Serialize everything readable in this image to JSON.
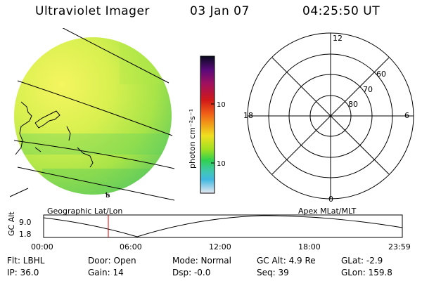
{
  "header": {
    "title": "Ultraviolet Imager",
    "date": "03 Jan 07",
    "time": "04:25:50 UT"
  },
  "colorbar": {
    "label": "photon cm⁻²s⁻¹",
    "ticks": [
      "100",
      "10"
    ],
    "colors": [
      "#1a0a3a",
      "#5a0a7a",
      "#a01060",
      "#d01818",
      "#f06018",
      "#f0a018",
      "#f0e020",
      "#a0e020",
      "#30d050",
      "#40c8b0",
      "#40b8e0",
      "#e8e8f0"
    ]
  },
  "image_panel": {
    "fill_colors": [
      "#f0f060",
      "#c8f048",
      "#90e040",
      "#60d060"
    ],
    "glyph": "b"
  },
  "polar_plot": {
    "mlt_labels": {
      "top": "12",
      "left": "18",
      "right": "6",
      "bottom": "0"
    },
    "lat_labels": [
      "60",
      "70",
      "80"
    ]
  },
  "altitude_strip": {
    "title_left": "Geographic Lat/Lon",
    "title_right": "Apex MLat/MLT",
    "axis_label": "GC Alt",
    "y_ticks": [
      "9.0",
      "1.8"
    ],
    "x_ticks": [
      "00:00",
      "06:00",
      "12:00",
      "18:00",
      "23:59"
    ],
    "marker_color": "#e00000"
  },
  "info": {
    "flt": "Flt: LBHL",
    "door": "Door: Open",
    "mode": "Mode: Normal",
    "gcalt": "GC Alt: 4.9 Re",
    "glat": "GLat:  -2.9",
    "ip": "IP: 36.0",
    "gain": "Gain: 14",
    "dsp": "Dsp:   -0.0",
    "seq": "Seq: 39",
    "glon": "GLon: 159.8"
  }
}
